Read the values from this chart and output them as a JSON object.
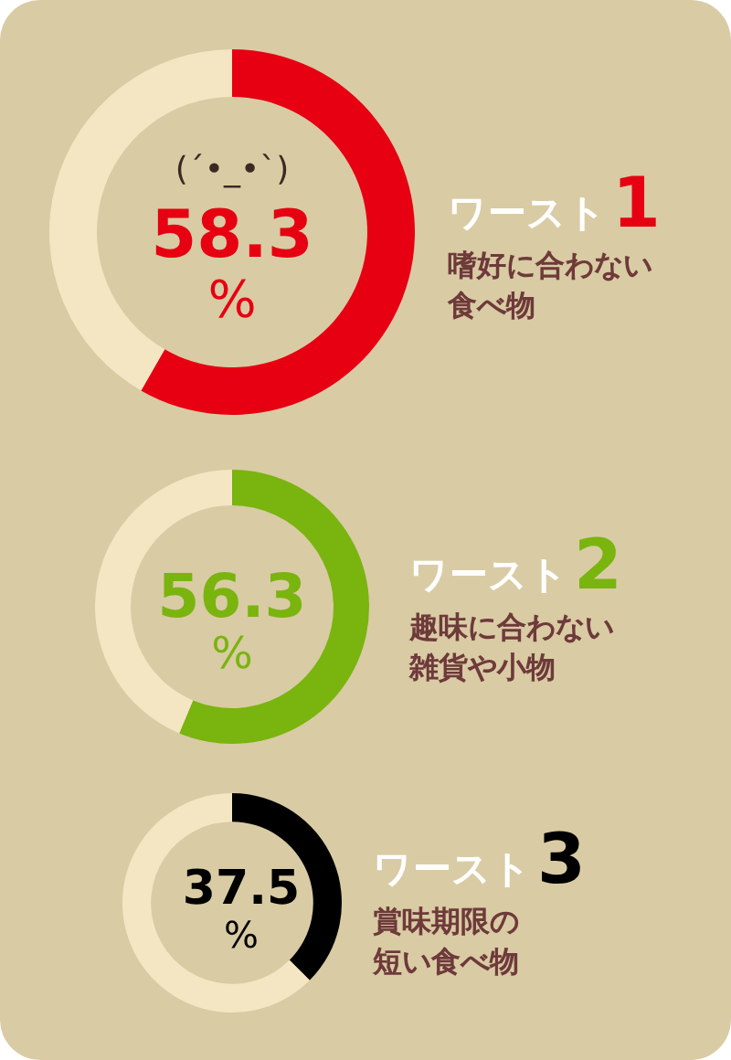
{
  "chart_data": [
    {
      "type": "donut",
      "title": "ワースト1",
      "subtitle": "嗜好に合わない食べ物",
      "categories": [
        null,
        null
      ],
      "values": [
        58.3,
        41.7
      ],
      "colors": [
        "#e60012",
        "#f5e6c3"
      ],
      "value_labels": [
        "58.3\n%",
        null
      ],
      "annotations": [
        "(´•_•`)"
      ]
    },
    {
      "type": "donut",
      "title": "ワースト2",
      "subtitle": "趣味に合わない雑貨や小物",
      "categories": [
        null,
        null
      ],
      "values": [
        56.3,
        43.7
      ],
      "colors": [
        "#7ab40f",
        "#f5e6c3"
      ],
      "value_labels": [
        "56.3\n%",
        null
      ]
    },
    {
      "type": "donut",
      "title": "ワースト3",
      "subtitle": "賞味期限の短い食べ物",
      "categories": [
        null,
        null
      ],
      "values": [
        37.5,
        62.5
      ],
      "colors": [
        "#000000",
        "#f5e6c3"
      ],
      "value_labels": [
        "37.5\n%",
        null
      ]
    }
  ]
}
